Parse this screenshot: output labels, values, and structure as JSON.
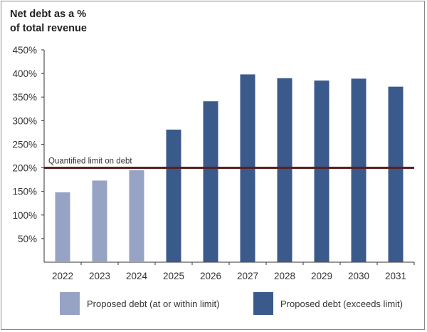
{
  "chart_data": {
    "type": "bar",
    "title_line1": "Net debt as a %",
    "title_line2": "of total revenue",
    "categories": [
      "2022",
      "2023",
      "2024",
      "2025",
      "2026",
      "2027",
      "2028",
      "2029",
      "2030",
      "2031"
    ],
    "values": [
      148,
      173,
      195,
      281,
      341,
      398,
      390,
      385,
      389,
      372
    ],
    "ylim": [
      0,
      450
    ],
    "yticks": [
      50,
      100,
      150,
      200,
      250,
      300,
      350,
      400,
      450
    ],
    "ytick_labels": [
      "50%",
      "100%",
      "150%",
      "200%",
      "250%",
      "300%",
      "350%",
      "400%",
      "450%"
    ],
    "limit_value": 200,
    "limit_label": "Quantified limit on debt",
    "series": [
      {
        "name": "Proposed debt (at or within limit)",
        "color": "#97a3c4",
        "indices": [
          0,
          1,
          2
        ]
      },
      {
        "name": "Proposed debt (exceeds limit)",
        "color": "#3a5a8c",
        "indices": [
          3,
          4,
          5,
          6,
          7,
          8,
          9
        ]
      }
    ],
    "limit_color": "#5a1f1f"
  }
}
